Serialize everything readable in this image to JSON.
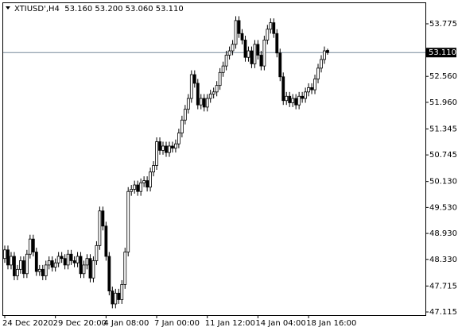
{
  "chart_data": {
    "type": "candlestick",
    "header": "XTIUSD',H4  53.160 53.200 53.060 53.110",
    "categories": [
      "24 Dec 2020",
      null,
      null,
      null,
      null,
      null,
      null,
      null,
      null,
      null,
      null,
      null,
      null,
      null,
      null,
      null,
      "29 Dec 20:00",
      null,
      null,
      null,
      null,
      null,
      null,
      null,
      null,
      null,
      null,
      null,
      null,
      null,
      null,
      null,
      "4 Jan 08:00",
      null,
      null,
      null,
      null,
      null,
      null,
      null,
      null,
      null,
      null,
      null,
      null,
      null,
      null,
      null,
      "7 Jan 00:00",
      null,
      null,
      null,
      null,
      null,
      null,
      null,
      null,
      null,
      null,
      null,
      null,
      null,
      null,
      null,
      "11 Jan 12:00",
      null,
      null,
      null,
      null,
      null,
      null,
      null,
      null,
      null,
      null,
      null,
      null,
      null,
      null,
      null,
      "14 Jan 04:00",
      null,
      null,
      null,
      null,
      null,
      null,
      null,
      null,
      null,
      null,
      null,
      null,
      null,
      null,
      null,
      "18 Jan 16:00",
      null,
      null,
      null,
      null,
      null,
      null
    ],
    "open": [
      48.35,
      48.55,
      48.2,
      48.4,
      47.95,
      48.1,
      48.3,
      48.0,
      48.45,
      48.8,
      48.5,
      48.05,
      48.1,
      47.95,
      48.2,
      48.3,
      48.15,
      48.25,
      48.4,
      48.35,
      48.2,
      48.45,
      48.3,
      48.25,
      48.4,
      48.0,
      48.2,
      48.35,
      47.9,
      48.3,
      48.65,
      49.45,
      49.1,
      48.4,
      47.6,
      47.3,
      47.55,
      47.4,
      47.75,
      48.5,
      49.9,
      49.95,
      50.05,
      49.9,
      50.1,
      50.15,
      50.0,
      50.35,
      50.5,
      51.05,
      50.85,
      50.95,
      50.8,
      50.95,
      50.9,
      51.0,
      51.25,
      51.55,
      51.8,
      52.05,
      52.6,
      52.4,
      51.9,
      52.05,
      51.85,
      52.05,
      52.15,
      52.2,
      52.35,
      52.65,
      52.8,
      53.05,
      53.15,
      53.3,
      53.85,
      53.55,
      53.4,
      53.0,
      53.15,
      52.85,
      53.3,
      53.05,
      52.8,
      53.4,
      53.65,
      53.8,
      53.55,
      53.1,
      52.55,
      52.0,
      52.1,
      51.95,
      52.05,
      51.9,
      52.1,
      52.05,
      52.2,
      52.3,
      52.25,
      52.5,
      52.75,
      52.95,
      53.16
    ],
    "high": [
      48.65,
      48.65,
      48.5,
      48.5,
      48.2,
      48.4,
      48.4,
      48.55,
      48.9,
      48.9,
      48.6,
      48.2,
      48.2,
      48.3,
      48.4,
      48.4,
      48.35,
      48.5,
      48.5,
      48.45,
      48.55,
      48.55,
      48.4,
      48.5,
      48.5,
      48.3,
      48.45,
      48.45,
      48.4,
      48.75,
      49.55,
      49.55,
      49.2,
      48.5,
      47.7,
      47.65,
      47.65,
      47.85,
      48.6,
      50.0,
      50.05,
      50.15,
      50.15,
      50.2,
      50.25,
      50.25,
      50.45,
      50.6,
      51.15,
      51.15,
      51.05,
      51.05,
      51.05,
      51.05,
      51.1,
      51.35,
      51.65,
      51.9,
      52.15,
      52.7,
      52.7,
      52.5,
      52.15,
      52.15,
      52.15,
      52.25,
      52.3,
      52.45,
      52.75,
      52.9,
      53.15,
      53.25,
      53.4,
      53.95,
      53.95,
      53.65,
      53.5,
      53.25,
      53.25,
      53.4,
      53.4,
      53.15,
      53.5,
      53.75,
      53.9,
      53.9,
      53.65,
      53.2,
      52.65,
      52.2,
      52.2,
      52.15,
      52.15,
      52.2,
      52.2,
      52.3,
      52.4,
      52.4,
      52.6,
      52.85,
      53.05,
      53.25,
      53.2
    ],
    "low": [
      48.25,
      48.1,
      48.1,
      47.85,
      47.85,
      48.0,
      47.9,
      47.9,
      48.35,
      48.4,
      47.95,
      47.95,
      47.85,
      47.85,
      48.1,
      48.05,
      48.05,
      48.15,
      48.25,
      48.1,
      48.1,
      48.2,
      48.15,
      48.15,
      47.9,
      47.9,
      48.1,
      47.8,
      47.8,
      48.2,
      48.55,
      49.0,
      48.3,
      47.5,
      47.2,
      47.2,
      47.3,
      47.3,
      47.65,
      48.4,
      49.8,
      49.85,
      49.8,
      49.8,
      50.0,
      49.9,
      49.9,
      50.25,
      50.4,
      50.75,
      50.75,
      50.7,
      50.7,
      50.8,
      50.8,
      50.9,
      51.15,
      51.45,
      51.7,
      51.95,
      52.3,
      51.8,
      51.8,
      51.75,
      51.75,
      51.95,
      52.05,
      52.1,
      52.25,
      52.55,
      52.7,
      52.95,
      53.05,
      53.2,
      53.45,
      53.3,
      52.9,
      52.9,
      52.75,
      52.75,
      52.95,
      52.7,
      52.7,
      53.3,
      53.55,
      53.45,
      53.0,
      52.45,
      51.9,
      51.9,
      51.85,
      51.85,
      51.8,
      51.8,
      51.95,
      51.95,
      52.1,
      52.15,
      52.15,
      52.4,
      52.65,
      52.85,
      53.06
    ],
    "close": [
      48.55,
      48.2,
      48.4,
      47.95,
      48.1,
      48.3,
      48.0,
      48.45,
      48.8,
      48.5,
      48.05,
      48.1,
      47.95,
      48.2,
      48.3,
      48.15,
      48.25,
      48.4,
      48.35,
      48.2,
      48.45,
      48.3,
      48.25,
      48.4,
      48.0,
      48.2,
      48.35,
      47.9,
      48.3,
      48.65,
      49.45,
      49.1,
      48.4,
      47.6,
      47.3,
      47.55,
      47.4,
      47.75,
      48.5,
      49.9,
      49.95,
      50.05,
      49.9,
      50.1,
      50.15,
      50.0,
      50.35,
      50.5,
      51.05,
      50.85,
      50.95,
      50.8,
      50.95,
      50.9,
      51.0,
      51.25,
      51.55,
      51.8,
      52.05,
      52.6,
      52.4,
      51.9,
      52.05,
      51.85,
      52.05,
      52.15,
      52.2,
      52.35,
      52.65,
      52.8,
      53.05,
      53.15,
      53.3,
      53.85,
      53.55,
      53.4,
      53.0,
      53.15,
      52.85,
      53.3,
      53.05,
      52.8,
      53.4,
      53.65,
      53.8,
      53.55,
      53.1,
      52.55,
      52.0,
      52.1,
      51.95,
      52.05,
      51.9,
      52.1,
      52.05,
      52.2,
      52.3,
      52.25,
      52.5,
      52.75,
      52.95,
      53.15,
      53.11
    ],
    "up_color": "#ffffff",
    "down_color": "#000000",
    "wick_color": "#000000",
    "ylim": [
      47.042,
      54.27
    ],
    "yticks": [
      47.115,
      47.715,
      {
        "value": 48.33,
        "label": "48.330"
      },
      {
        "value": 48.93,
        "label": "48.930"
      },
      {
        "value": 49.53,
        "label": "49.530"
      },
      {
        "value": 50.13,
        "label": "50.130"
      },
      50.745,
      51.345,
      {
        "value": 51.96,
        "label": "51.960"
      },
      {
        "value": 52.56,
        "label": "52.560"
      },
      53.775
    ],
    "last_price": {
      "value": 53.11,
      "label": "53.110"
    },
    "last_price_color": "#778899"
  }
}
